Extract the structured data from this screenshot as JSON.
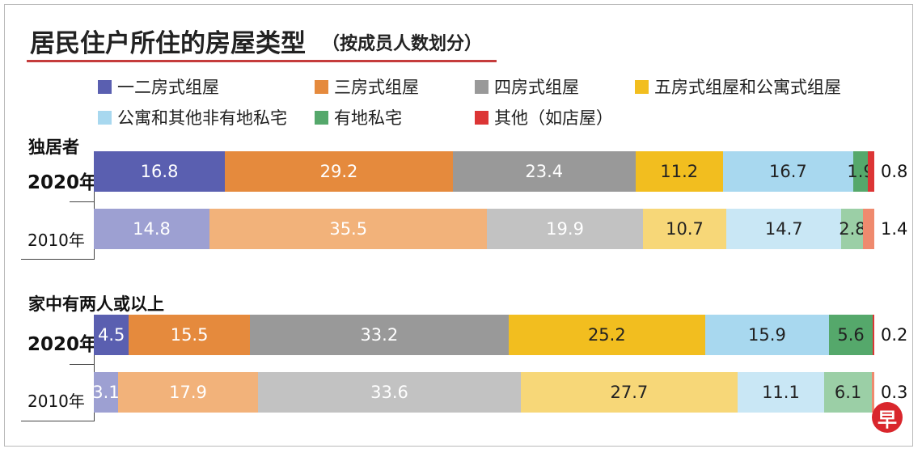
{
  "title": "居民住户所住的房屋类型",
  "subtitle": "（按成员人数划分）",
  "legend": [
    {
      "label": "一二房式组屋",
      "color": "#5a5fb0"
    },
    {
      "label": "三房式组屋",
      "color": "#e58a3d"
    },
    {
      "label": "四房式组屋",
      "color": "#999999"
    },
    {
      "label": "五房式组屋和公寓式组屋",
      "color": "#f2be1f"
    },
    {
      "label": "公寓和其他非有地私宅",
      "color": "#a8d8ef"
    },
    {
      "label": "有地私宅",
      "color": "#55a86b"
    },
    {
      "label": "其他（如店屋）",
      "color": "#dc3535"
    }
  ],
  "groups": [
    {
      "title": "独居者",
      "rows": [
        {
          "year": "2020年"
        },
        {
          "year": "2010年"
        }
      ]
    },
    {
      "title": "家中有两人或以上",
      "rows": [
        {
          "year": "2020年"
        },
        {
          "year": "2010年"
        }
      ]
    }
  ],
  "chart_data": {
    "type": "bar",
    "stacked": true,
    "orientation": "horizontal",
    "unit": "%",
    "categories": [
      "独居者 2020年",
      "独居者 2010年",
      "家中有两人或以上 2020年",
      "家中有两人或以上 2010年"
    ],
    "series": [
      {
        "name": "一二房式组屋",
        "values": [
          16.8,
          14.8,
          4.5,
          3.1
        ],
        "color": "#5a5fb0",
        "light_color": "#9da0d2"
      },
      {
        "name": "三房式组屋",
        "values": [
          29.2,
          35.5,
          15.5,
          17.9
        ],
        "color": "#e58a3d",
        "light_color": "#f2b27a"
      },
      {
        "name": "四房式组屋",
        "values": [
          23.4,
          19.9,
          33.2,
          33.6
        ],
        "color": "#999999",
        "light_color": "#c2c2c2"
      },
      {
        "name": "五房式组屋和公寓式组屋",
        "values": [
          11.2,
          10.7,
          25.2,
          27.7
        ],
        "color": "#f2be1f",
        "light_color": "#f7d778"
      },
      {
        "name": "公寓和其他非有地私宅",
        "values": [
          16.7,
          14.7,
          15.9,
          11.1
        ],
        "color": "#a8d8ef",
        "light_color": "#c9e7f5"
      },
      {
        "name": "有地私宅",
        "values": [
          1.9,
          2.8,
          5.6,
          6.1
        ],
        "color": "#55a86b",
        "light_color": "#9bcfa6"
      },
      {
        "name": "其他（如店屋）",
        "values": [
          0.8,
          1.4,
          0.2,
          0.3
        ],
        "color": "#dc3535",
        "light_color": "#ef8a6e"
      }
    ]
  },
  "logo_text": "早"
}
